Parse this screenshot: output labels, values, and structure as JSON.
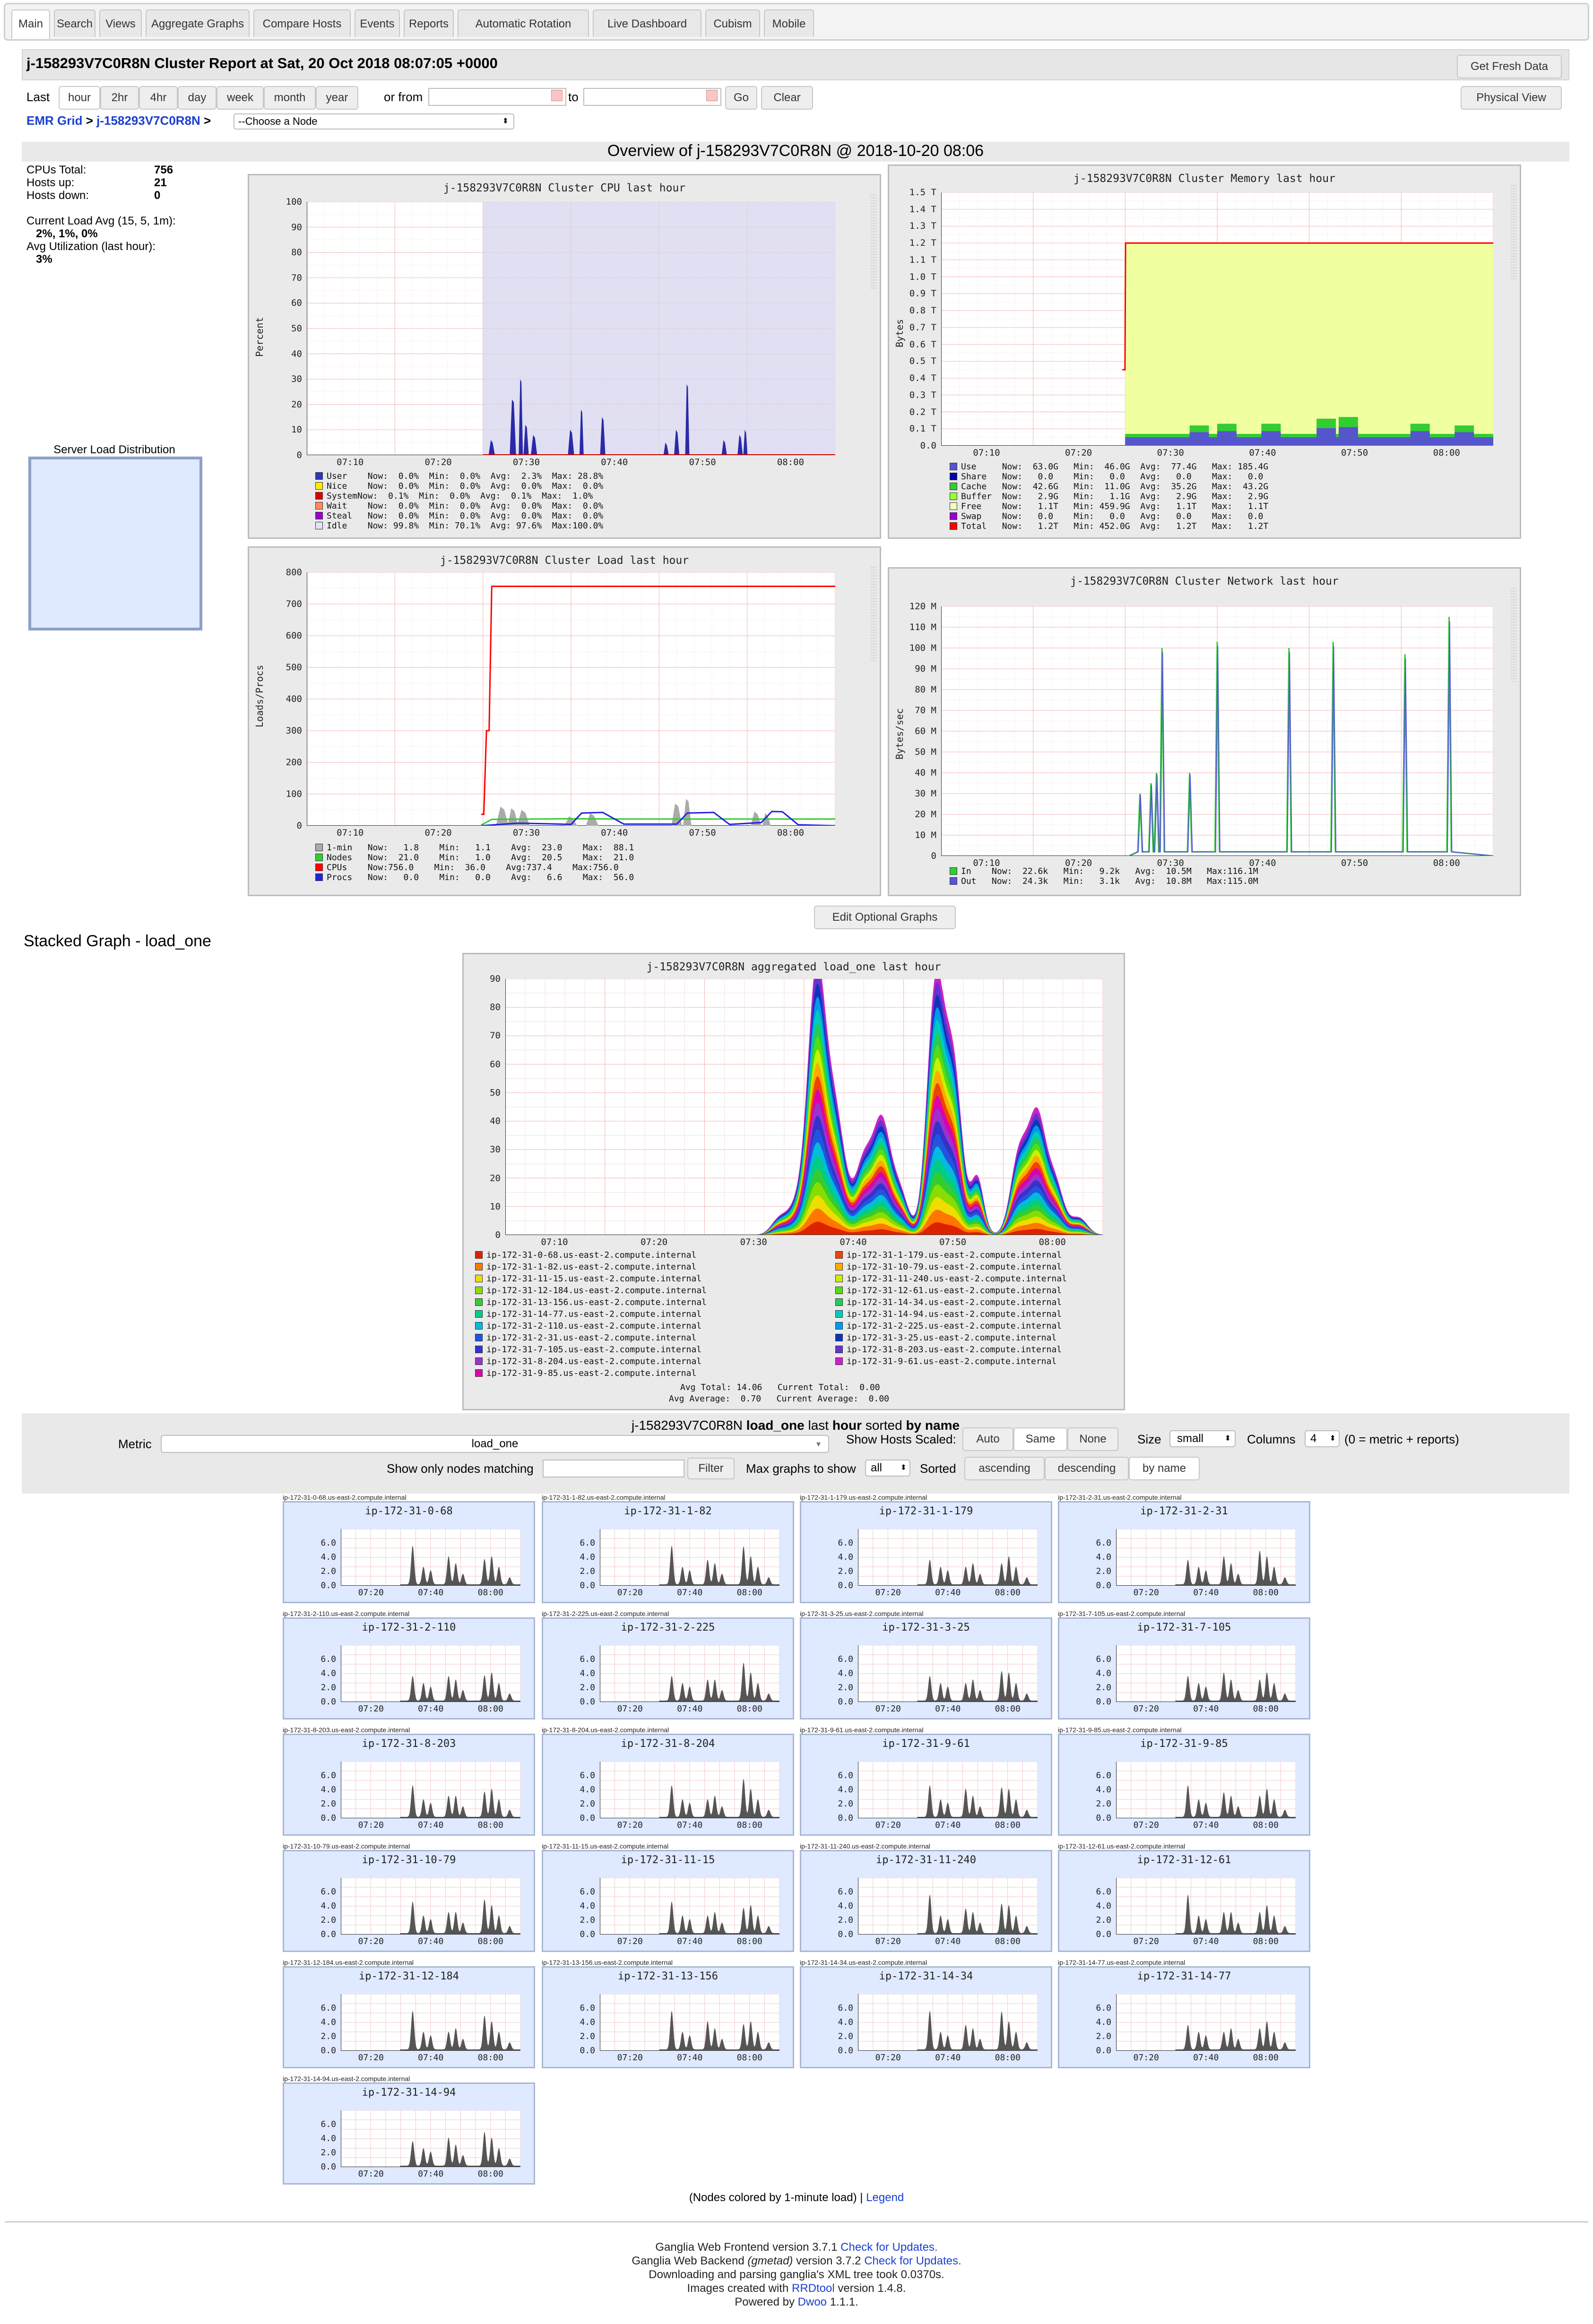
{
  "tabs": [
    "Main",
    "Search",
    "Views",
    "Aggregate Graphs",
    "Compare Hosts",
    "Events",
    "Reports",
    "Automatic Rotation",
    "Live Dashboard",
    "Cubism",
    "Mobile"
  ],
  "header": {
    "title": "j-158293V7C0R8N Cluster Report at Sat, 20 Oct 2018 08:07:05 +0000",
    "fresh_button": "Get Fresh Data",
    "physical_button": "Physical View"
  },
  "range": {
    "last_label": "Last",
    "options": [
      "hour",
      "2hr",
      "4hr",
      "day",
      "week",
      "month",
      "year"
    ],
    "or_from": "or from",
    "to": "to",
    "go": "Go",
    "clear": "Clear"
  },
  "breadcrumb": {
    "grid": "EMR Grid",
    "sep": ">",
    "cluster": "j-158293V7C0R8N",
    "node_select": "--Choose a Node"
  },
  "overview_title": "Overview of j-158293V7C0R8N @ 2018-10-20 08:06",
  "stats": {
    "cpus_label": "CPUs Total:",
    "cpus": "756",
    "hosts_up_label": "Hosts up:",
    "hosts_up": "21",
    "hosts_down_label": "Hosts down:",
    "hosts_down": "0",
    "load_label": "Current Load Avg (15, 5, 1m):",
    "load": "2%, 1%, 0%",
    "util_label": "Avg Utilization (last hour):",
    "util": "3%",
    "server_load_label": "Server Load Distribution"
  },
  "x_ticks": [
    "07:10",
    "07:20",
    "07:30",
    "07:40",
    "07:50",
    "08:00"
  ],
  "graphs": {
    "cpu": {
      "title": "j-158293V7C0R8N Cluster CPU last hour",
      "ylabel": "Percent",
      "yticks": [
        "100",
        "90",
        "80",
        "70",
        "60",
        "50",
        "40",
        "30",
        "20",
        "10",
        "0"
      ],
      "legend": [
        {
          "color": "#3333bb",
          "text": "User    Now:  0.0%  Min:  0.0%  Avg:  2.3%  Max: 28.8%"
        },
        {
          "color": "#ffea00",
          "text": "Nice    Now:  0.0%  Min:  0.0%  Avg:  0.0%  Max:  0.0%"
        },
        {
          "color": "#dd0000",
          "text": "SystemNow:  0.1%  Min:  0.0%  Avg:  0.1%  Max:  1.0%"
        },
        {
          "color": "#ff8a60",
          "text": "Wait    Now:  0.0%  Min:  0.0%  Avg:  0.0%  Max:  0.0%"
        },
        {
          "color": "#9900cc",
          "text": "Steal   Now:  0.0%  Min:  0.0%  Avg:  0.0%  Max:  0.0%"
        },
        {
          "color": "#e2e2f2",
          "text": "Idle    Now: 99.8%  Min: 70.1%  Avg: 97.6%  Max:100.0%"
        }
      ]
    },
    "mem": {
      "title": "j-158293V7C0R8N Cluster Memory last hour",
      "ylabel": "Bytes",
      "yticks": [
        "1.5 T",
        "1.4 T",
        "1.3 T",
        "1.2 T",
        "1.1 T",
        "1.0 T",
        "0.9 T",
        "0.8 T",
        "0.7 T",
        "0.6 T",
        "0.5 T",
        "0.4 T",
        "0.3 T",
        "0.2 T",
        "0.1 T",
        "0.0"
      ],
      "legend": [
        {
          "color": "#5555cc",
          "text": "Use     Now:  63.0G   Min:  46.0G  Avg:  77.4G   Max: 185.4G"
        },
        {
          "color": "#0000aa",
          "text": "Share   Now:   0.0    Min:   0.0   Avg:   0.0    Max:   0.0"
        },
        {
          "color": "#33cc33",
          "text": "Cache   Now:  42.6G   Min:  11.0G  Avg:  35.2G   Max:  43.2G"
        },
        {
          "color": "#99ff33",
          "text": "Buffer  Now:   2.9G   Min:   1.1G  Avg:   2.9G   Max:   2.9G"
        },
        {
          "color": "#f0ffc0",
          "text": "Free    Now:   1.1T   Min: 459.9G  Avg:   1.1T   Max:   1.1T"
        },
        {
          "color": "#9900cc",
          "text": "Swap    Now:   0.0    Min:   0.0   Avg:   0.0    Max:   0.0"
        },
        {
          "color": "#ff0000",
          "text": "Total   Now:   1.2T   Min: 452.0G  Avg:   1.2T   Max:   1.2T"
        }
      ]
    },
    "load": {
      "title": "j-158293V7C0R8N Cluster Load last hour",
      "ylabel": "Loads/Procs",
      "yticks": [
        "800",
        "700",
        "600",
        "500",
        "400",
        "300",
        "200",
        "100",
        "0"
      ],
      "legend": [
        {
          "color": "#aaaaaa",
          "text": "1-min   Now:   1.8    Min:   1.1    Avg:  23.0    Max:  88.1"
        },
        {
          "color": "#33cc33",
          "text": "Nodes   Now:  21.0    Min:   1.0    Avg:  20.5    Max:  21.0"
        },
        {
          "color": "#ff0000",
          "text": "CPUs    Now:756.0    Min:  36.0    Avg:737.4    Max:756.0"
        },
        {
          "color": "#2222dd",
          "text": "Procs   Now:   0.0    Min:   0.0    Avg:   6.6    Max:  56.0"
        }
      ]
    },
    "net": {
      "title": "j-158293V7C0R8N Cluster Network last hour",
      "ylabel": "Bytes/sec",
      "yticks": [
        "120 M",
        "110 M",
        "100 M",
        "90 M",
        "80 M",
        "70 M",
        "60 M",
        "50 M",
        "40 M",
        "30 M",
        "20 M",
        "10 M",
        "0"
      ],
      "legend": [
        {
          "color": "#33cc33",
          "text": "In    Now:  22.6k   Min:   9.2k   Avg:  10.5M   Max:116.1M"
        },
        {
          "color": "#5555dd",
          "text": "Out   Now:  24.3k   Min:   3.1k   Avg:  10.8M   Max:115.0M"
        }
      ]
    }
  },
  "edit_button": "Edit Optional Graphs",
  "stacked": {
    "heading": "Stacked Graph - load_one",
    "title": "j-158293V7C0R8N aggregated load_one last hour",
    "yticks": [
      "90",
      "80",
      "70",
      "60",
      "50",
      "40",
      "30",
      "20",
      "10",
      "0"
    ],
    "legend_left": [
      {
        "color": "#dd2200",
        "text": "ip-172-31-0-68.us-east-2.compute.internal"
      },
      {
        "color": "#ff7700",
        "text": "ip-172-31-1-82.us-east-2.compute.internal"
      },
      {
        "color": "#eedd00",
        "text": "ip-172-31-11-15.us-east-2.compute.internal"
      },
      {
        "color": "#88dd00",
        "text": "ip-172-31-12-184.us-east-2.compute.internal"
      },
      {
        "color": "#33cc33",
        "text": "ip-172-31-13-156.us-east-2.compute.internal"
      },
      {
        "color": "#00cc88",
        "text": "ip-172-31-14-77.us-east-2.compute.internal"
      },
      {
        "color": "#00bbdd",
        "text": "ip-172-31-2-110.us-east-2.compute.internal"
      },
      {
        "color": "#2255dd",
        "text": "ip-172-31-2-31.us-east-2.compute.internal"
      },
      {
        "color": "#3333cc",
        "text": "ip-172-31-7-105.us-east-2.compute.internal"
      },
      {
        "color": "#9933cc",
        "text": "ip-172-31-8-204.us-east-2.compute.internal"
      },
      {
        "color": "#dd00aa",
        "text": "ip-172-31-9-85.us-east-2.compute.internal"
      }
    ],
    "legend_right": [
      {
        "color": "#ee4400",
        "text": "ip-172-31-1-179.us-east-2.compute.internal"
      },
      {
        "color": "#ffaa00",
        "text": "ip-172-31-10-79.us-east-2.compute.internal"
      },
      {
        "color": "#ccee00",
        "text": "ip-172-31-11-240.us-east-2.compute.internal"
      },
      {
        "color": "#55dd11",
        "text": "ip-172-31-12-61.us-east-2.compute.internal"
      },
      {
        "color": "#22cc55",
        "text": "ip-172-31-14-34.us-east-2.compute.internal"
      },
      {
        "color": "#00ccbb",
        "text": "ip-172-31-14-94.us-east-2.compute.internal"
      },
      {
        "color": "#0099ee",
        "text": "ip-172-31-2-225.us-east-2.compute.internal"
      },
      {
        "color": "#1133bb",
        "text": "ip-172-31-3-25.us-east-2.compute.internal"
      },
      {
        "color": "#6633cc",
        "text": "ip-172-31-8-203.us-east-2.compute.internal"
      },
      {
        "color": "#cc22cc",
        "text": "ip-172-31-9-61.us-east-2.compute.internal"
      }
    ],
    "summary1": "Avg Total: 14.06   Current Total:  0.00",
    "summary2": "Avg Average:  0.70   Current Average:  0.00"
  },
  "controls": {
    "cluster": "j-158293V7C0R8N",
    "metric_bold": "load_one",
    "last": "last",
    "hour": "hour",
    "sorted_by": "sorted",
    "by_name": "by name",
    "metric_label": "Metric",
    "metric_value": "load_one",
    "scaled_label": "Show Hosts Scaled:",
    "scaled_opts": [
      "Auto",
      "Same",
      "None"
    ],
    "size_label": "Size",
    "size_value": "small",
    "columns_label": "Columns",
    "columns_value": "4",
    "columns_note": "(0 = metric + reports)",
    "filter_label": "Show only nodes matching",
    "filter_button": "Filter",
    "max_label": "Max graphs to show",
    "max_value": "all",
    "sorted_label": "Sorted",
    "sort_opts": [
      "ascending",
      "descending",
      "by name"
    ]
  },
  "hosts": [
    {
      "name": "ip-172-31-0-68",
      "caption": "ip-172-31-0-68.us-east-2.compute.internal"
    },
    {
      "name": "ip-172-31-1-82",
      "caption": "ip-172-31-1-82.us-east-2.compute.internal"
    },
    {
      "name": "ip-172-31-1-179",
      "caption": "ip-172-31-1-179.us-east-2.compute.internal"
    },
    {
      "name": "ip-172-31-2-31",
      "caption": "ip-172-31-2-31.us-east-2.compute.internal"
    },
    {
      "name": "ip-172-31-2-110",
      "caption": "ip-172-31-2-110.us-east-2.compute.internal"
    },
    {
      "name": "ip-172-31-2-225",
      "caption": "ip-172-31-2-225.us-east-2.compute.internal"
    },
    {
      "name": "ip-172-31-3-25",
      "caption": "ip-172-31-3-25.us-east-2.compute.internal"
    },
    {
      "name": "ip-172-31-7-105",
      "caption": "ip-172-31-7-105.us-east-2.compute.internal"
    },
    {
      "name": "ip-172-31-8-203",
      "caption": "ip-172-31-8-203.us-east-2.compute.internal"
    },
    {
      "name": "ip-172-31-8-204",
      "caption": "ip-172-31-8-204.us-east-2.compute.internal"
    },
    {
      "name": "ip-172-31-9-61",
      "caption": "ip-172-31-9-61.us-east-2.compute.internal"
    },
    {
      "name": "ip-172-31-9-85",
      "caption": "ip-172-31-9-85.us-east-2.compute.internal"
    },
    {
      "name": "ip-172-31-10-79",
      "caption": "ip-172-31-10-79.us-east-2.compute.internal"
    },
    {
      "name": "ip-172-31-11-15",
      "caption": "ip-172-31-11-15.us-east-2.compute.internal"
    },
    {
      "name": "ip-172-31-11-240",
      "caption": "ip-172-31-11-240.us-east-2.compute.internal"
    },
    {
      "name": "ip-172-31-12-61",
      "caption": "ip-172-31-12-61.us-east-2.compute.internal"
    },
    {
      "name": "ip-172-31-12-184",
      "caption": "ip-172-31-12-184.us-east-2.compute.internal"
    },
    {
      "name": "ip-172-31-13-156",
      "caption": "ip-172-31-13-156.us-east-2.compute.internal"
    },
    {
      "name": "ip-172-31-14-34",
      "caption": "ip-172-31-14-34.us-east-2.compute.internal"
    },
    {
      "name": "ip-172-31-14-77",
      "caption": "ip-172-31-14-77.us-east-2.compute.internal"
    },
    {
      "name": "ip-172-31-14-94",
      "caption": "ip-172-31-14-94.us-east-2.compute.internal"
    }
  ],
  "small_yticks": [
    "6.0",
    "4.0",
    "2.0",
    "0.0"
  ],
  "small_xticks": [
    "07:20",
    "07:40",
    "08:00"
  ],
  "nodes_note": "(Nodes colored by 1-minute load)",
  "legend_link": "Legend",
  "footer": {
    "l1a": "Ganglia Web Frontend version 3.7.1",
    "l1b": "Check for Updates.",
    "l2a": "Ganglia Web Backend",
    "l2b": "(gmetad)",
    "l2c": "version 3.7.2",
    "l2d": "Check for Updates.",
    "l3": "Downloading and parsing ganglia's XML tree took 0.0370s.",
    "l4a": "Images created with",
    "l4b": "RRDtool",
    "l4c": "version 1.4.8.",
    "l5a": "Powered by",
    "l5b": "Dwoo",
    "l5c": "1.1.1."
  },
  "colors": {
    "link": "#1a3fd0",
    "idle_band": "#e2e2f2",
    "free_band": "#f0ffc0",
    "host_panel": "#dfe9ff"
  }
}
